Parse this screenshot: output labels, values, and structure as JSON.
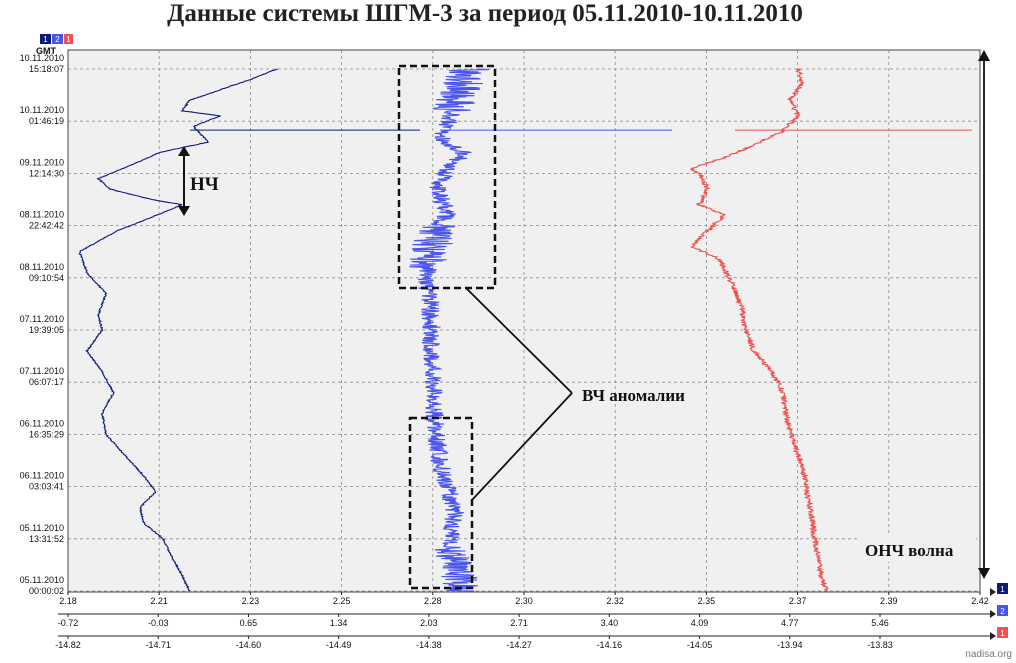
{
  "title": "Данные системы ШГМ-3 за период 05.11.2010-10.11.2010",
  "legend_tags": [
    "1",
    "2",
    "1"
  ],
  "colors": {
    "ch1": "#0d1a7a",
    "ch2": "#4a55f0",
    "ch3": "#f05050",
    "plot_bg": "#f0f0f0",
    "grid": "#8c8c8c"
  },
  "chart_data": {
    "type": "line",
    "y_axis": {
      "unit_label": "GMT",
      "ticks": [
        {
          "date": "10.11.2010",
          "time": "15:18:07"
        },
        {
          "date": "10.11.2010",
          "time": "01:46:19"
        },
        {
          "date": "09.11.2010",
          "time": "12:14:30"
        },
        {
          "date": "08.11.2010",
          "time": "22:42:42"
        },
        {
          "date": "08.11.2010",
          "time": "09:10:54"
        },
        {
          "date": "07.11.2010",
          "time": "19:39:05"
        },
        {
          "date": "07.11.2010",
          "time": "06:07:17"
        },
        {
          "date": "06.11.2010",
          "time": "16:35:29"
        },
        {
          "date": "06.11.2010",
          "time": "03:03:41"
        },
        {
          "date": "05.11.2010",
          "time": "13:31:52"
        },
        {
          "date": "05.11.2010",
          "time": "00:00:02"
        }
      ]
    },
    "x_axes": [
      {
        "ticks": [
          "2.18",
          "2.21",
          "2.23",
          "2.25",
          "2.28",
          "2.30",
          "2.32",
          "2.35",
          "2.37",
          "2.39",
          "2.42"
        ],
        "marker": "1"
      },
      {
        "ticks": [
          "-0.72",
          "-0.03",
          "0.65",
          "1.34",
          "2.03",
          "2.71",
          "3.40",
          "4.09",
          "4.77",
          "5.46"
        ],
        "marker": "2"
      },
      {
        "ticks": [
          "-14.82",
          "-14.71",
          "-14.60",
          "-14.49",
          "-14.38",
          "-14.27",
          "-14.16",
          "-14.05",
          "-13.94",
          "-13.83"
        ],
        "marker": "1"
      }
    ],
    "series": [
      {
        "id": "1",
        "axis": 0,
        "points": [
          [
            0,
            2.212
          ],
          [
            0.03,
            2.21
          ],
          [
            0.07,
            2.207
          ],
          [
            0.1,
            2.205
          ],
          [
            0.13,
            2.2
          ],
          [
            0.16,
            2.199
          ],
          [
            0.19,
            2.203
          ],
          [
            0.22,
            2.2
          ],
          [
            0.26,
            2.195
          ],
          [
            0.3,
            2.19
          ],
          [
            0.34,
            2.189
          ],
          [
            0.38,
            2.192
          ],
          [
            0.42,
            2.189
          ],
          [
            0.46,
            2.185
          ],
          [
            0.5,
            2.189
          ],
          [
            0.53,
            2.188
          ],
          [
            0.57,
            2.19
          ],
          [
            0.61,
            2.185
          ],
          [
            0.65,
            2.183
          ],
          [
            0.69,
            2.193
          ],
          [
            0.71,
            2.2
          ],
          [
            0.74,
            2.21
          ],
          [
            0.75,
            2.202
          ],
          [
            0.77,
            2.191
          ],
          [
            0.79,
            2.188
          ],
          [
            0.82,
            2.198
          ],
          [
            0.84,
            2.204
          ],
          [
            0.86,
            2.217
          ],
          [
            0.89,
            2.213
          ],
          [
            0.91,
            2.22
          ],
          [
            0.92,
            2.21
          ],
          [
            0.94,
            2.212
          ],
          [
            0.96,
            2.22
          ],
          [
            0.98,
            2.228
          ],
          [
            1.0,
            2.235
          ]
        ]
      },
      {
        "id": "2",
        "axis": 1,
        "points": [
          [
            0,
            2.3
          ],
          [
            0.05,
            2.25
          ],
          [
            0.1,
            2.2
          ],
          [
            0.15,
            2.24
          ],
          [
            0.2,
            2.18
          ],
          [
            0.25,
            2.12
          ],
          [
            0.3,
            2.1
          ],
          [
            0.35,
            2.08
          ],
          [
            0.4,
            2.07
          ],
          [
            0.45,
            2.05
          ],
          [
            0.5,
            2.06
          ],
          [
            0.55,
            2.05
          ],
          [
            0.6,
            2.02
          ],
          [
            0.63,
            2.04
          ],
          [
            0.66,
            2.06
          ],
          [
            0.7,
            2.1
          ],
          [
            0.72,
            2.18
          ],
          [
            0.75,
            2.14
          ],
          [
            0.78,
            2.1
          ],
          [
            0.81,
            2.2
          ],
          [
            0.84,
            2.3
          ],
          [
            0.87,
            2.12
          ],
          [
            0.9,
            2.2
          ],
          [
            0.93,
            2.23
          ],
          [
            0.96,
            2.28
          ],
          [
            1.0,
            2.35
          ]
        ]
      },
      {
        "id": "1",
        "axis": 2,
        "points": [
          [
            0,
            -13.895
          ],
          [
            0.03,
            -13.902
          ],
          [
            0.06,
            -13.905
          ],
          [
            0.1,
            -13.91
          ],
          [
            0.14,
            -13.913
          ],
          [
            0.18,
            -13.918
          ],
          [
            0.22,
            -13.922
          ],
          [
            0.26,
            -13.93
          ],
          [
            0.3,
            -13.938
          ],
          [
            0.34,
            -13.945
          ],
          [
            0.38,
            -13.948
          ],
          [
            0.42,
            -13.962
          ],
          [
            0.46,
            -13.984
          ],
          [
            0.5,
            -13.994
          ],
          [
            0.54,
            -13.998
          ],
          [
            0.58,
            -14.008
          ],
          [
            0.62,
            -14.02
          ],
          [
            0.64,
            -14.03
          ],
          [
            0.66,
            -14.06
          ],
          [
            0.69,
            -14.04
          ],
          [
            0.72,
            -14.02
          ],
          [
            0.74,
            -14.05
          ],
          [
            0.77,
            -14.04
          ],
          [
            0.8,
            -14.05
          ],
          [
            0.81,
            -14.06
          ],
          [
            0.83,
            -14.02
          ],
          [
            0.85,
            -13.99
          ],
          [
            0.88,
            -13.95
          ],
          [
            0.91,
            -13.93
          ],
          [
            0.94,
            -13.94
          ],
          [
            0.97,
            -13.925
          ],
          [
            1.0,
            -13.93
          ]
        ]
      }
    ],
    "grid": true,
    "annotations": [
      {
        "name": "nch",
        "text": "НЧ"
      },
      {
        "name": "vch",
        "text": "ВЧ аномалии"
      },
      {
        "name": "onch",
        "text": "ОНЧ волна"
      }
    ]
  },
  "watermark": "nadisa.org"
}
